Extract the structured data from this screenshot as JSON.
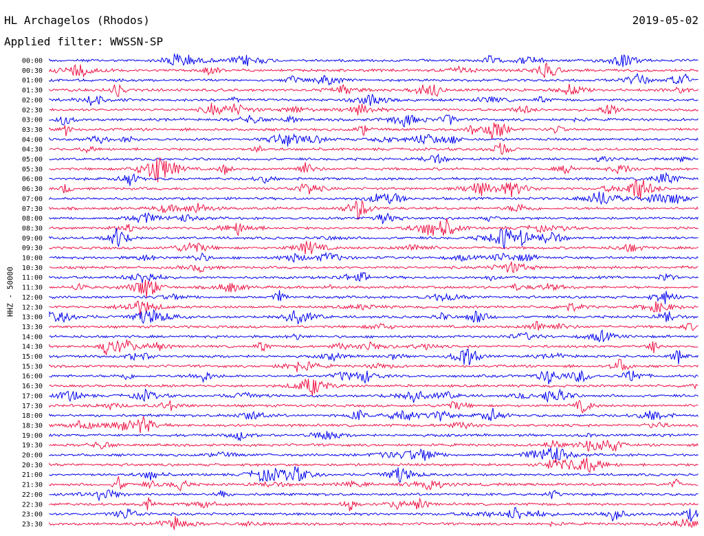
{
  "header": {
    "station": "HL Archagelos (Rhodos)",
    "date": "2019-05-02",
    "filter": "Applied filter: WWSSN-SP"
  },
  "chart_data": {
    "type": "line",
    "title": "HL Archagelos (Rhodos)",
    "ylabel": "HHZ - 50000",
    "rows": [
      "00:00",
      "00:30",
      "01:00",
      "01:30",
      "02:00",
      "02:30",
      "03:00",
      "03:30",
      "04:00",
      "04:30",
      "05:00",
      "05:30",
      "06:00",
      "06:30",
      "07:00",
      "07:30",
      "08:00",
      "08:30",
      "09:00",
      "09:30",
      "10:00",
      "10:30",
      "11:00",
      "11:30",
      "12:00",
      "12:30",
      "13:00",
      "13:30",
      "14:00",
      "14:30",
      "15:00",
      "15:30",
      "16:00",
      "16:30",
      "17:00",
      "17:30",
      "18:00",
      "18:30",
      "19:00",
      "19:30",
      "20:00",
      "20:30",
      "21:00",
      "21:30",
      "22:00",
      "22:30",
      "23:00",
      "23:30"
    ],
    "series_colors": [
      "#0000ee",
      "#ee1144"
    ],
    "grid": false
  }
}
